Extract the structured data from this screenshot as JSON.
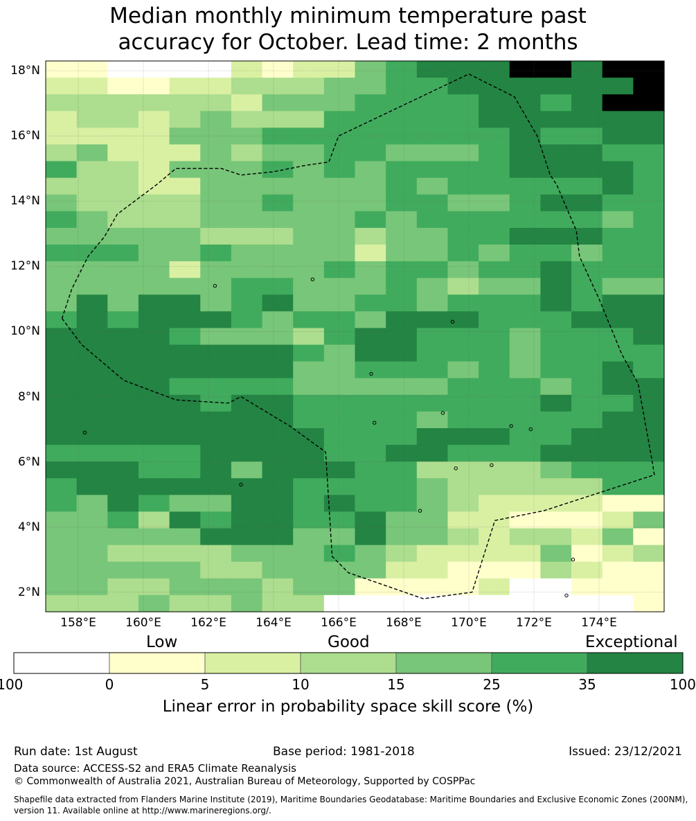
{
  "title_line1": "Median monthly minimum temperature past",
  "title_line2": "accuracy for October. Lead time: 2 months",
  "map": {
    "lon_range": [
      157,
      176
    ],
    "lat_range": [
      1.4,
      18.3
    ],
    "lat_ticks": [
      {
        "value": 18,
        "label": "18°N"
      },
      {
        "value": 16,
        "label": "16°N"
      },
      {
        "value": 14,
        "label": "14°N"
      },
      {
        "value": 12,
        "label": "12°N"
      },
      {
        "value": 10,
        "label": "10°N"
      },
      {
        "value": 8,
        "label": "8°N"
      },
      {
        "value": 6,
        "label": "6°N"
      },
      {
        "value": 4,
        "label": "4°N"
      },
      {
        "value": 2,
        "label": "2°N"
      }
    ],
    "lon_ticks": [
      {
        "value": 158,
        "label": "158°E"
      },
      {
        "value": 160,
        "label": "160°E"
      },
      {
        "value": 162,
        "label": "162°E"
      },
      {
        "value": 164,
        "label": "164°E"
      },
      {
        "value": 166,
        "label": "166°E"
      },
      {
        "value": 168,
        "label": "168°E"
      },
      {
        "value": 170,
        "label": "170°E"
      },
      {
        "value": 172,
        "label": "172°E"
      },
      {
        "value": 174,
        "label": "174°E"
      }
    ],
    "cell_deg_lon": 0.833,
    "cell_deg_lat": 0.555,
    "grid_rows_north_to_south": [
      "11000021224566677677",
      "22112233344556666667",
      "33333324445555665677",
      "23323433355555666666",
      "22224445555555565566",
      "34222434455444566655",
      "53324445454555566665",
      "33322444444545555565",
      "43333445444554456655",
      "54333444445455555545",
      "44444333443445566655",
      "55544544442445455455",
      "44442444454554556555",
      "44444455444543446544",
      "46466456445545556566",
      "56566654554666555666",
      "66665444356655545556",
      "66666666546655545555",
      "66666666445554545565",
      "66665555444445554566",
      "66666566555555556556",
      "66666666555545555566",
      "66666666655566655666",
      "55555666655665556666",
      "66655646665533334555",
      "56666666555543333355",
      "54654466565543222211",
      "44536566556442211124",
      "44444666446443233241",
      "44333344454322224123",
      "44444334444221113211",
      "44334443441111200111",
      "33343343300000000001"
    ],
    "eez_boundary": [
      [
        157.5,
        10.4
      ],
      [
        158.1,
        9.6
      ],
      [
        159.4,
        8.5
      ],
      [
        161.0,
        7.9
      ],
      [
        162.6,
        7.8
      ],
      [
        163.0,
        8.0
      ],
      [
        164.5,
        7.1
      ],
      [
        165.6,
        6.3
      ],
      [
        165.8,
        3.1
      ],
      [
        166.3,
        2.6
      ],
      [
        168.6,
        1.8
      ],
      [
        170.1,
        2.0
      ],
      [
        170.8,
        4.2
      ],
      [
        172.3,
        4.5
      ],
      [
        175.7,
        5.6
      ],
      [
        175.6,
        6.2
      ],
      [
        175.2,
        8.4
      ],
      [
        174.7,
        9.3
      ],
      [
        174.0,
        11.0
      ],
      [
        173.4,
        12.3
      ],
      [
        173.3,
        13.1
      ],
      [
        172.7,
        14.5
      ],
      [
        172.5,
        14.8
      ],
      [
        172.1,
        16.0
      ],
      [
        171.4,
        17.2
      ],
      [
        170.0,
        17.9
      ],
      [
        166.0,
        16.0
      ],
      [
        165.7,
        15.2
      ],
      [
        165.0,
        15.1
      ],
      [
        164.0,
        14.9
      ],
      [
        163.0,
        14.8
      ],
      [
        162.4,
        15.0
      ],
      [
        161.0,
        15.0
      ],
      [
        160.4,
        14.5
      ],
      [
        159.2,
        13.6
      ],
      [
        158.8,
        12.9
      ],
      [
        158.3,
        12.3
      ],
      [
        157.8,
        11.3
      ],
      [
        157.5,
        10.4
      ]
    ],
    "islands": [
      [
        158.2,
        6.9
      ],
      [
        163.0,
        5.3
      ],
      [
        167.0,
        8.7
      ],
      [
        169.2,
        7.5
      ],
      [
        171.3,
        7.1
      ],
      [
        171.9,
        7.0
      ],
      [
        173.2,
        3.0
      ],
      [
        173.0,
        1.9
      ],
      [
        168.5,
        4.5
      ],
      [
        169.6,
        5.8
      ],
      [
        170.7,
        5.9
      ],
      [
        167.1,
        7.2
      ],
      [
        165.2,
        11.6
      ],
      [
        162.2,
        11.4
      ],
      [
        169.5,
        10.3
      ]
    ]
  },
  "colorbar": {
    "colors": [
      "#ffffff",
      "#ffffcc",
      "#d9f0a3",
      "#addd8e",
      "#78c679",
      "#41ab5d",
      "#238443"
    ],
    "ticks": [
      "-100",
      "0",
      "5",
      "10",
      "15",
      "25",
      "35",
      "100"
    ],
    "categories": [
      "Low",
      "Good",
      "Exceptional"
    ],
    "label": "Linear error in probability space skill score (%)"
  },
  "footer": {
    "run_date": "Run date: 1st August",
    "base_period": "Base period: 1981-2018",
    "issued": "Issued: 23/12/2021",
    "data_source": "Data source: ACCESS-S2 and ERA5 Climate Reanalysis",
    "copyright": "© Commonwealth of Australia 2021, Australian Bureau of Meteorology, Supported by COSPPac",
    "shapefile": "Shapefile data extracted from Flanders Marine Institute (2019), Maritime Boundaries Geodatabase: Maritime Boundaries and Exclusive Economic Zones (200NM), version 11. Available online at http://www.marineregions.org/."
  }
}
